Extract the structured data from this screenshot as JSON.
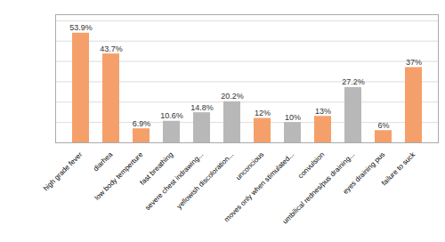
{
  "chart_data": {
    "type": "bar",
    "categories": [
      "high grade fever",
      "diarhea",
      "low body temperture",
      "fast breathing",
      "severe chest indrawing...",
      "yellowish discoloration...",
      "unconcious",
      "moves only when stimulated...",
      "convulsion",
      "umbilical rednes/pus draining...",
      "eyes draining pus",
      "failure to suck"
    ],
    "values": [
      53.9,
      43.7,
      6.9,
      10.6,
      14.8,
      20.2,
      12.0,
      10.0,
      13.0,
      27.2,
      6.0,
      37.0
    ],
    "value_labels": [
      "53.9%",
      "43.7%",
      "6.9%",
      "10.6%",
      "14.8%",
      "20.2%",
      "12%",
      "10%",
      "13%",
      "27.2%",
      "6%",
      "37%"
    ],
    "colors": [
      "#f5a06a",
      "#f5a06a",
      "#f5a06a",
      "#b8b8b8",
      "#b8b8b8",
      "#b8b8b8",
      "#f5a06a",
      "#b8b8b8",
      "#f5a06a",
      "#b8b8b8",
      "#f5a06a",
      "#f5a06a"
    ],
    "ylim": [
      0,
      63
    ],
    "yticks": [
      0,
      10,
      20,
      30,
      40,
      50,
      60
    ],
    "grid": true,
    "data_labels": true,
    "tick_labels": "x"
  }
}
